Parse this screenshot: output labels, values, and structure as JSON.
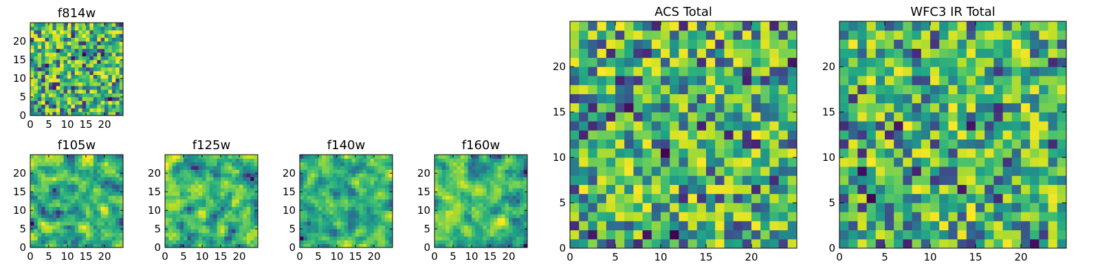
{
  "chart_data": [
    {
      "type": "heatmap",
      "title": "f814w",
      "grid_size": [
        25,
        25
      ],
      "colormap": "viridis",
      "xlim": [
        0,
        25
      ],
      "ylim": [
        0,
        25
      ],
      "xticks": [
        0,
        5,
        10,
        15,
        20
      ],
      "yticks": [
        0,
        5,
        10,
        15,
        20
      ],
      "seed": 11,
      "smooth": 0
    },
    {
      "type": "heatmap",
      "title": "f105w",
      "grid_size": [
        25,
        25
      ],
      "colormap": "viridis",
      "xlim": [
        0,
        25
      ],
      "ylim": [
        0,
        25
      ],
      "xticks": [
        0,
        5,
        10,
        15,
        20
      ],
      "yticks": [
        0,
        5,
        10,
        15,
        20
      ],
      "seed": 23,
      "smooth": 1
    },
    {
      "type": "heatmap",
      "title": "f125w",
      "grid_size": [
        25,
        25
      ],
      "colormap": "viridis",
      "xlim": [
        0,
        25
      ],
      "ylim": [
        0,
        25
      ],
      "xticks": [
        0,
        5,
        10,
        15,
        20
      ],
      "yticks": [
        0,
        5,
        10,
        15,
        20
      ],
      "seed": 37,
      "smooth": 1
    },
    {
      "type": "heatmap",
      "title": "f140w",
      "grid_size": [
        25,
        25
      ],
      "colormap": "viridis",
      "xlim": [
        0,
        25
      ],
      "ylim": [
        0,
        25
      ],
      "xticks": [
        0,
        5,
        10,
        15,
        20
      ],
      "yticks": [
        0,
        5,
        10,
        15,
        20
      ],
      "seed": 41,
      "smooth": 1
    },
    {
      "type": "heatmap",
      "title": "f160w",
      "grid_size": [
        25,
        25
      ],
      "colormap": "viridis",
      "xlim": [
        0,
        25
      ],
      "ylim": [
        0,
        25
      ],
      "xticks": [
        0,
        5,
        10,
        15,
        20
      ],
      "yticks": [
        0,
        5,
        10,
        15,
        20
      ],
      "seed": 53,
      "smooth": 1
    },
    {
      "type": "heatmap",
      "title": "ACS Total",
      "grid_size": [
        25,
        25
      ],
      "colormap": "viridis",
      "xlim": [
        0,
        25
      ],
      "ylim": [
        0,
        25
      ],
      "xticks": [
        0,
        5,
        10,
        15,
        20
      ],
      "yticks": [
        0,
        5,
        10,
        15,
        20
      ],
      "seed": 67,
      "smooth": 0
    },
    {
      "type": "heatmap",
      "title": "WFC3 IR Total",
      "grid_size": [
        25,
        25
      ],
      "colormap": "viridis",
      "xlim": [
        0,
        25
      ],
      "ylim": [
        0,
        25
      ],
      "xticks": [
        0,
        5,
        10,
        15,
        20
      ],
      "yticks": [
        0,
        5,
        10,
        15,
        20
      ],
      "seed": 79,
      "smooth": 0
    }
  ]
}
